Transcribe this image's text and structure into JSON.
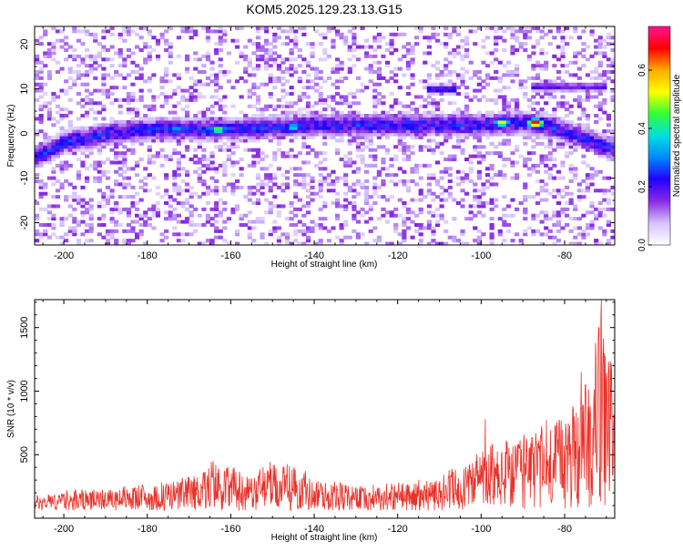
{
  "chart_data": [
    {
      "type": "heatmap",
      "title": "KOM5.2025.129.23.13.G15",
      "xlabel": "Height of straight line (km)",
      "ylabel": "Frequency (Hz)",
      "xlim": [
        -207,
        -68
      ],
      "ylim": [
        -25,
        24
      ],
      "x_ticks": [
        -200,
        -180,
        -160,
        -140,
        -120,
        -100,
        -80
      ],
      "y_ticks": [
        -20,
        -10,
        0,
        10,
        20
      ],
      "colorbar": {
        "label": "Normalized spectral amplitude",
        "range": [
          0,
          0.75
        ],
        "ticks": [
          0.0,
          0.2,
          0.4,
          0.6
        ],
        "tick_labels": [
          "0.0",
          "0.2",
          "0.4",
          "0.6"
        ],
        "colors": [
          "#ffffff",
          "#d6c2ff",
          "#8a2be2",
          "#2200ff",
          "#0088ff",
          "#00e0e0",
          "#33ff33",
          "#ffff00",
          "#ffaa00",
          "#ff0000",
          "#ff1493"
        ]
      },
      "ridge": {
        "description_points": [
          [
            -206,
            -5
          ],
          [
            -200,
            -2
          ],
          [
            -190,
            0
          ],
          [
            -180,
            1
          ],
          [
            -170,
            1
          ],
          [
            -160,
            1
          ],
          [
            -150,
            1.5
          ],
          [
            -140,
            2
          ],
          [
            -130,
            2
          ],
          [
            -120,
            2
          ],
          [
            -110,
            2
          ],
          [
            -100,
            2
          ],
          [
            -90,
            2.5
          ],
          [
            -85,
            2
          ],
          [
            -80,
            0.5
          ],
          [
            -75,
            -1
          ],
          [
            -70,
            -3
          ]
        ],
        "peaks": [
          {
            "x": -87,
            "y": 2.5,
            "v": 0.75
          },
          {
            "x": -95,
            "y": 2.5,
            "v": 0.55
          },
          {
            "x": -163,
            "y": 1,
            "v": 0.5
          },
          {
            "x": -145,
            "y": 1.5,
            "v": 0.4
          },
          {
            "x": -173,
            "y": 1,
            "v": 0.35
          }
        ],
        "upper_branch": [
          {
            "x_range": [
              -113,
              -106
            ],
            "y": 10,
            "v": 0.25
          },
          {
            "x_range": [
              -88,
              -70
            ],
            "y": 10.5,
            "v": 0.2
          }
        ]
      },
      "colorbar_tick_values": [
        0.0,
        0.2,
        0.4,
        0.6
      ]
    },
    {
      "type": "line",
      "xlabel": "Height of straight line (km)",
      "ylabel": "SNR (10 * v/v)",
      "xlim": [
        -207,
        -68
      ],
      "ylim": [
        0,
        1720
      ],
      "x_ticks": [
        -200,
        -180,
        -160,
        -140,
        -120,
        -100,
        -80
      ],
      "y_ticks": [
        500,
        1000,
        1500
      ],
      "color": "#e8322a",
      "envelope": [
        [
          -207,
          180
        ],
        [
          -200,
          200
        ],
        [
          -190,
          220
        ],
        [
          -180,
          250
        ],
        [
          -170,
          300
        ],
        [
          -165,
          420
        ],
        [
          -160,
          380
        ],
        [
          -155,
          320
        ],
        [
          -150,
          420
        ],
        [
          -145,
          400
        ],
        [
          -140,
          300
        ],
        [
          -130,
          250
        ],
        [
          -120,
          260
        ],
        [
          -110,
          300
        ],
        [
          -105,
          400
        ],
        [
          -100,
          520
        ],
        [
          -95,
          550
        ],
        [
          -90,
          600
        ],
        [
          -85,
          700
        ],
        [
          -80,
          800
        ],
        [
          -75,
          950
        ],
        [
          -72,
          1500
        ],
        [
          -70,
          1300
        ],
        [
          -68,
          1000
        ]
      ],
      "spikes": [
        [
          -71.2,
          1720
        ],
        [
          -71.8,
          1500
        ],
        [
          -72.6,
          1380
        ],
        [
          -76,
          1150
        ],
        [
          -75,
          1050
        ],
        [
          -99,
          780
        ]
      ]
    }
  ]
}
